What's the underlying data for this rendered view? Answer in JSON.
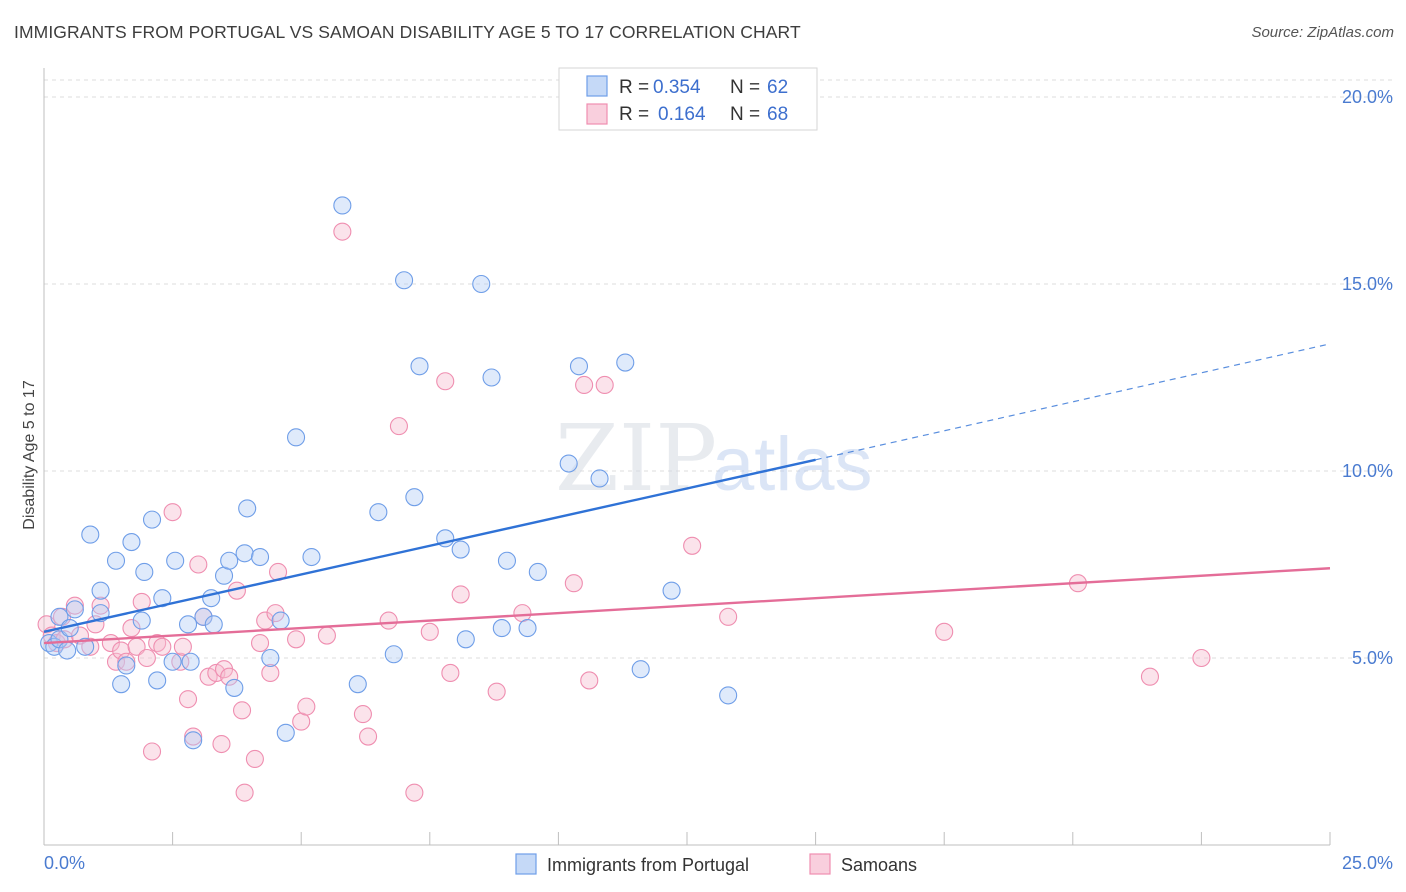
{
  "title": "IMMIGRANTS FROM PORTUGAL VS SAMOAN DISABILITY AGE 5 TO 17 CORRELATION CHART",
  "source": "Source: ZipAtlas.com",
  "watermark": {
    "zip": "ZIP",
    "atlas": "atlas"
  },
  "legend": {
    "rows": [
      {
        "r_label": "R =",
        "r_value": "0.354",
        "n_label": "N =",
        "n_value": "62"
      },
      {
        "r_label": "R =",
        "r_value": "0.164",
        "n_label": "N =",
        "n_value": "68"
      }
    ]
  },
  "chart_data": {
    "type": "scatter",
    "title": "IMMIGRANTS FROM PORTUGAL VS SAMOAN DISABILITY AGE 5 TO 17 CORRELATION CHART",
    "xlabel": "",
    "ylabel": "Disability Age 5 to 17",
    "xlim": [
      0,
      25
    ],
    "ylim": [
      0,
      20.5
    ],
    "x_tick_labels": [
      "0.0%",
      "25.0%"
    ],
    "y_ticks": [
      5,
      10,
      15,
      20
    ],
    "y_tick_labels": [
      "5.0%",
      "10.0%",
      "15.0%",
      "20.0%"
    ],
    "grid": true,
    "legend_position": "top-center",
    "colors": {
      "portugal": "#6f9ee8",
      "samoan": "#ef8eb0",
      "portugal_line": "#2f72d6",
      "samoan_line": "#e46d98"
    },
    "series": [
      {
        "name": "Immigrants from Portugal",
        "color": "#6f9ee8",
        "r": 0.354,
        "n": 62,
        "trend": {
          "x0": 0,
          "y0": 5.7,
          "x1": 15,
          "y1": 10.3,
          "dash_to_x": 25,
          "dash_to_y": 13.4
        },
        "points": [
          [
            0.1,
            5.4
          ],
          [
            0.2,
            5.3
          ],
          [
            0.3,
            5.5
          ],
          [
            0.3,
            6.1
          ],
          [
            0.45,
            5.2
          ],
          [
            0.5,
            5.8
          ],
          [
            0.6,
            6.3
          ],
          [
            0.8,
            5.3
          ],
          [
            0.9,
            8.3
          ],
          [
            1.1,
            6.8
          ],
          [
            1.1,
            6.2
          ],
          [
            1.4,
            7.6
          ],
          [
            1.5,
            4.3
          ],
          [
            1.6,
            4.8
          ],
          [
            1.7,
            8.1
          ],
          [
            1.9,
            6.0
          ],
          [
            1.95,
            7.3
          ],
          [
            2.1,
            8.7
          ],
          [
            2.2,
            4.4
          ],
          [
            2.3,
            6.6
          ],
          [
            2.5,
            4.9
          ],
          [
            2.55,
            7.6
          ],
          [
            2.8,
            5.9
          ],
          [
            2.85,
            4.9
          ],
          [
            2.9,
            2.8
          ],
          [
            3.1,
            6.1
          ],
          [
            3.25,
            6.6
          ],
          [
            3.3,
            5.9
          ],
          [
            3.5,
            7.2
          ],
          [
            3.6,
            7.6
          ],
          [
            3.7,
            4.2
          ],
          [
            3.9,
            7.8
          ],
          [
            3.95,
            9.0
          ],
          [
            4.2,
            7.7
          ],
          [
            4.4,
            5.0
          ],
          [
            4.6,
            6.0
          ],
          [
            4.7,
            3.0
          ],
          [
            4.9,
            10.9
          ],
          [
            5.2,
            7.7
          ],
          [
            5.8,
            17.1
          ],
          [
            6.1,
            4.3
          ],
          [
            6.5,
            8.9
          ],
          [
            6.8,
            5.1
          ],
          [
            7.0,
            15.1
          ],
          [
            7.2,
            9.3
          ],
          [
            7.3,
            12.8
          ],
          [
            7.8,
            8.2
          ],
          [
            8.1,
            7.9
          ],
          [
            8.2,
            5.5
          ],
          [
            8.5,
            15.0
          ],
          [
            8.7,
            12.5
          ],
          [
            8.9,
            5.8
          ],
          [
            9.0,
            7.6
          ],
          [
            9.4,
            5.8
          ],
          [
            9.6,
            7.3
          ],
          [
            10.2,
            10.2
          ],
          [
            10.4,
            12.8
          ],
          [
            10.8,
            9.8
          ],
          [
            11.3,
            12.9
          ],
          [
            11.6,
            4.7
          ],
          [
            12.2,
            6.8
          ],
          [
            13.3,
            4.0
          ]
        ]
      },
      {
        "name": "Samoans",
        "color": "#ef8eb0",
        "r": 0.164,
        "n": 68,
        "trend": {
          "x0": 0,
          "y0": 5.4,
          "x1": 25,
          "y1": 7.4
        },
        "points": [
          [
            0.05,
            5.9
          ],
          [
            0.15,
            5.6
          ],
          [
            0.25,
            5.4
          ],
          [
            0.4,
            5.5
          ],
          [
            0.6,
            6.4
          ],
          [
            0.7,
            5.6
          ],
          [
            0.9,
            5.3
          ],
          [
            1.0,
            5.9
          ],
          [
            1.1,
            6.4
          ],
          [
            1.3,
            5.4
          ],
          [
            1.4,
            4.9
          ],
          [
            1.5,
            5.2
          ],
          [
            1.6,
            4.9
          ],
          [
            1.7,
            5.8
          ],
          [
            1.8,
            5.3
          ],
          [
            1.9,
            6.5
          ],
          [
            2.0,
            5.0
          ],
          [
            2.1,
            2.5
          ],
          [
            2.2,
            5.4
          ],
          [
            2.3,
            5.3
          ],
          [
            2.5,
            8.9
          ],
          [
            2.65,
            4.9
          ],
          [
            2.7,
            5.3
          ],
          [
            2.8,
            3.9
          ],
          [
            2.9,
            2.9
          ],
          [
            3.0,
            7.5
          ],
          [
            3.1,
            6.1
          ],
          [
            3.2,
            4.5
          ],
          [
            3.35,
            4.6
          ],
          [
            3.45,
            2.7
          ],
          [
            3.5,
            4.7
          ],
          [
            3.6,
            4.5
          ],
          [
            3.75,
            6.8
          ],
          [
            3.85,
            3.6
          ],
          [
            3.9,
            1.4
          ],
          [
            4.1,
            2.3
          ],
          [
            4.2,
            5.4
          ],
          [
            4.3,
            6.0
          ],
          [
            4.4,
            4.6
          ],
          [
            4.5,
            6.2
          ],
          [
            4.55,
            7.3
          ],
          [
            4.9,
            5.5
          ],
          [
            5.0,
            3.3
          ],
          [
            5.1,
            3.7
          ],
          [
            5.5,
            5.6
          ],
          [
            5.8,
            16.4
          ],
          [
            6.2,
            3.5
          ],
          [
            6.3,
            2.9
          ],
          [
            6.7,
            6.0
          ],
          [
            6.9,
            11.2
          ],
          [
            7.2,
            1.4
          ],
          [
            7.5,
            5.7
          ],
          [
            7.8,
            12.4
          ],
          [
            7.9,
            4.6
          ],
          [
            8.1,
            6.7
          ],
          [
            8.8,
            4.1
          ],
          [
            9.3,
            6.2
          ],
          [
            10.3,
            7.0
          ],
          [
            10.5,
            12.3
          ],
          [
            10.6,
            4.4
          ],
          [
            10.9,
            12.3
          ],
          [
            12.6,
            8.0
          ],
          [
            13.3,
            6.1
          ],
          [
            17.5,
            5.7
          ],
          [
            20.1,
            7.0
          ],
          [
            21.5,
            4.5
          ],
          [
            22.5,
            5.0
          ],
          [
            0.35,
            6.1
          ]
        ]
      }
    ]
  }
}
